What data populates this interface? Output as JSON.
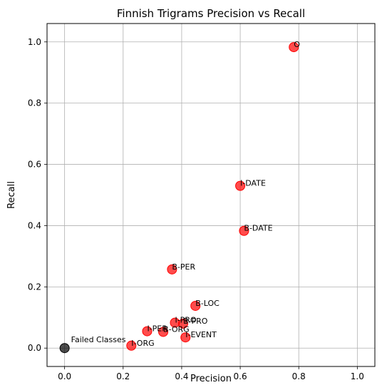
{
  "chart_data": {
    "type": "scatter",
    "title": "Finnish Trigrams Precision vs Recall",
    "xlabel": "Precision",
    "ylabel": "Recall",
    "xlim": [
      -0.06,
      1.06
    ],
    "ylim": [
      -0.06,
      1.06
    ],
    "xticks": [
      "0.0",
      "0.2",
      "0.4",
      "0.6",
      "0.8",
      "1.0"
    ],
    "yticks": [
      "0.0",
      "0.2",
      "0.4",
      "0.6",
      "0.8",
      "1.0"
    ],
    "grid": true,
    "legend": "none",
    "colors": {
      "class": "#ff0000",
      "failed": "#000000"
    },
    "points": [
      {
        "label": "O",
        "x": 0.783,
        "y": 0.983,
        "kind": "class"
      },
      {
        "label": "I-DATE",
        "x": 0.6,
        "y": 0.53,
        "kind": "class"
      },
      {
        "label": "B-DATE",
        "x": 0.613,
        "y": 0.383,
        "kind": "class"
      },
      {
        "label": "B-PER",
        "x": 0.367,
        "y": 0.257,
        "kind": "class"
      },
      {
        "label": "B-LOC",
        "x": 0.447,
        "y": 0.138,
        "kind": "class"
      },
      {
        "label": "I-PRO",
        "x": 0.377,
        "y": 0.083,
        "kind": "class"
      },
      {
        "label": "B-PRO",
        "x": 0.405,
        "y": 0.08,
        "kind": "class"
      },
      {
        "label": "I-PER",
        "x": 0.282,
        "y": 0.055,
        "kind": "class"
      },
      {
        "label": "B-ORG",
        "x": 0.337,
        "y": 0.053,
        "kind": "class"
      },
      {
        "label": "I-EVENT",
        "x": 0.413,
        "y": 0.035,
        "kind": "class"
      },
      {
        "label": "I-ORG",
        "x": 0.228,
        "y": 0.008,
        "kind": "class"
      },
      {
        "label": "Failed Classes",
        "x": 0.0,
        "y": 0.0,
        "kind": "failed"
      }
    ]
  }
}
